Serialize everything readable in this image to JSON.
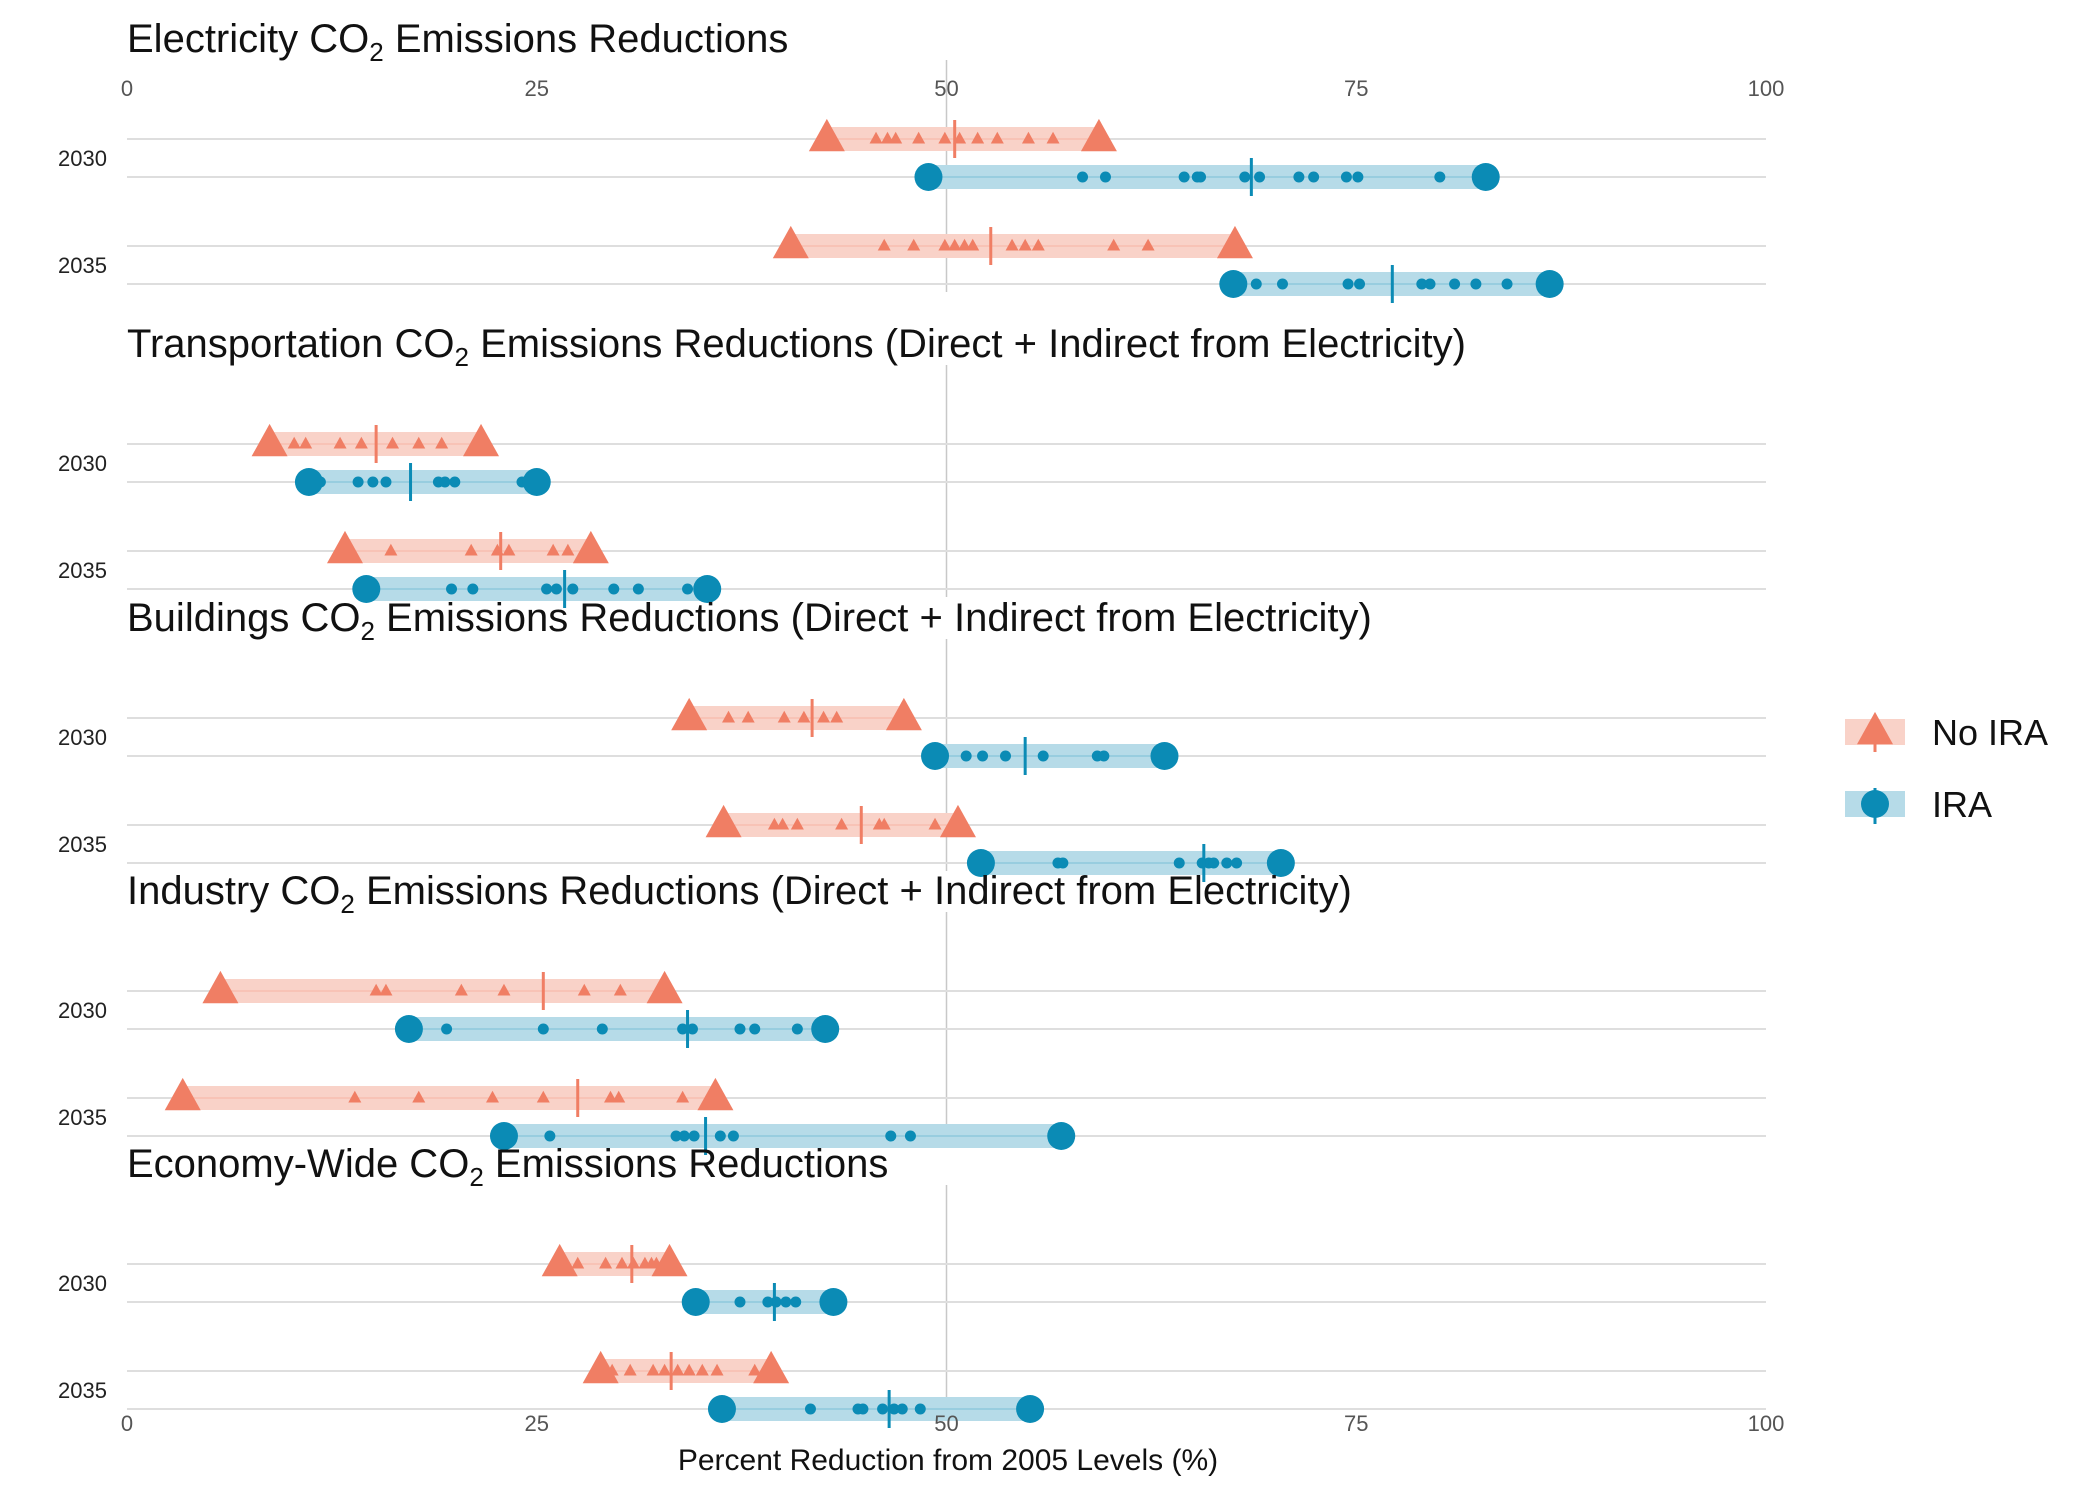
{
  "chart_data": {
    "type": "dot-range",
    "xlabel": "Percent Reduction from 2005 Levels (%)",
    "xlim": [
      0,
      100
    ],
    "xticks": [
      0,
      25,
      50,
      75,
      100
    ],
    "reference_line": 50,
    "legend": {
      "placement": "right",
      "entries": [
        {
          "name": "No IRA",
          "marker": "triangle",
          "color": "#f07e64",
          "band_color": "#f9d2c8"
        },
        {
          "name": "IRA",
          "marker": "circle",
          "color": "#0b8bb5",
          "band_color": "#b6dbe8"
        }
      ]
    },
    "panels": [
      {
        "title_main": "Electricity CO",
        "title_sub": "2",
        "title_rest": " Emissions Reductions",
        "groups": [
          {
            "year": "2030",
            "no_ira": {
              "min": 42.7,
              "max": 59.3,
              "median": 50.5,
              "points": [
                45.7,
                46.4,
                46.9,
                48.3,
                49.9,
                50.8,
                51.9,
                53.1,
                55.0,
                56.5
              ]
            },
            "ira": {
              "min": 48.9,
              "max": 82.9,
              "median": 68.6,
              "points": [
                58.3,
                59.7,
                64.5,
                65.3,
                65.5,
                68.2,
                69.1,
                71.5,
                72.4,
                74.4,
                75.1,
                80.1
              ]
            }
          },
          {
            "year": "2035",
            "no_ira": {
              "min": 40.5,
              "max": 67.6,
              "median": 52.7,
              "points": [
                46.2,
                48.0,
                49.9,
                50.5,
                51.1,
                51.6,
                54.0,
                54.8,
                55.6,
                60.2,
                62.3
              ]
            },
            "ira": {
              "min": 67.5,
              "max": 86.8,
              "median": 77.2,
              "points": [
                68.9,
                70.5,
                74.5,
                75.2,
                79.0,
                79.5,
                81.0,
                82.3,
                84.2
              ]
            }
          }
        ]
      },
      {
        "title_main": "Transportation CO",
        "title_sub": "2",
        "title_rest": " Emissions Reductions (Direct + Indirect from Electricity)",
        "groups": [
          {
            "year": "2030",
            "no_ira": {
              "min": 8.7,
              "max": 21.6,
              "median": 15.2,
              "points": [
                10.2,
                10.9,
                13.0,
                14.3,
                16.2,
                17.8,
                19.2
              ]
            },
            "ira": {
              "min": 11.1,
              "max": 25.0,
              "median": 17.3,
              "points": [
                11.8,
                14.1,
                15.0,
                15.8,
                19.0,
                19.4,
                20.0,
                24.1
              ]
            }
          },
          {
            "year": "2035",
            "no_ira": {
              "min": 13.3,
              "max": 28.3,
              "median": 22.8,
              "points": [
                16.1,
                21.0,
                22.6,
                23.3,
                26.0,
                26.9
              ]
            },
            "ira": {
              "min": 14.6,
              "max": 35.4,
              "median": 26.7,
              "points": [
                19.8,
                21.1,
                25.6,
                26.2,
                27.2,
                29.7,
                31.2,
                34.2
              ]
            }
          }
        ]
      },
      {
        "title_main": "Buildings CO",
        "title_sub": "2",
        "title_rest": " Emissions Reductions (Direct + Indirect from Electricity)",
        "groups": [
          {
            "year": "2030",
            "no_ira": {
              "min": 34.3,
              "max": 47.4,
              "median": 41.8,
              "points": [
                36.7,
                37.9,
                40.1,
                41.3,
                42.5,
                43.3
              ]
            },
            "ira": {
              "min": 49.3,
              "max": 63.3,
              "median": 54.8,
              "points": [
                51.2,
                52.2,
                53.6,
                55.9,
                59.2,
                59.6
              ]
            }
          },
          {
            "year": "2035",
            "no_ira": {
              "min": 36.4,
              "max": 50.7,
              "median": 44.8,
              "points": [
                39.5,
                40.0,
                40.9,
                43.6,
                45.9,
                46.2,
                49.3
              ]
            },
            "ira": {
              "min": 52.1,
              "max": 70.4,
              "median": 65.7,
              "points": [
                56.8,
                57.1,
                64.2,
                65.6,
                66.0,
                66.3,
                67.1,
                67.7
              ]
            }
          }
        ]
      },
      {
        "title_main": "Industry CO",
        "title_sub": "2",
        "title_rest": " Emissions Reductions (Direct + Indirect from Electricity)",
        "groups": [
          {
            "year": "2030",
            "no_ira": {
              "min": 5.7,
              "max": 32.8,
              "median": 25.4,
              "points": [
                15.2,
                15.8,
                20.4,
                23.0,
                27.9,
                30.1
              ]
            },
            "ira": {
              "min": 17.2,
              "max": 42.6,
              "median": 34.2,
              "points": [
                19.5,
                25.4,
                29.0,
                33.9,
                34.5,
                37.4,
                38.3,
                40.9
              ]
            }
          },
          {
            "year": "2035",
            "no_ira": {
              "min": 3.4,
              "max": 35.9,
              "median": 27.5,
              "points": [
                13.9,
                17.8,
                22.3,
                25.4,
                29.5,
                30.0,
                33.9
              ]
            },
            "ira": {
              "min": 23.0,
              "max": 57.0,
              "median": 35.3,
              "points": [
                25.8,
                33.5,
                34.0,
                34.6,
                36.2,
                37.0,
                46.6,
                47.8
              ]
            }
          }
        ]
      },
      {
        "title_main": "Economy-Wide CO",
        "title_sub": "2",
        "title_rest": " Emissions Reductions",
        "groups": [
          {
            "year": "2030",
            "no_ira": {
              "min": 26.4,
              "max": 33.1,
              "median": 30.8,
              "points": [
                27.5,
                29.2,
                30.2,
                30.9,
                31.6,
                32.0,
                32.3
              ]
            },
            "ira": {
              "min": 34.7,
              "max": 43.1,
              "median": 39.5,
              "points": [
                37.4,
                39.1,
                39.6,
                40.2,
                40.8
              ]
            }
          },
          {
            "year": "2035",
            "no_ira": {
              "min": 28.9,
              "max": 39.3,
              "median": 33.2,
              "points": [
                29.6,
                30.7,
                32.1,
                32.8,
                33.6,
                34.3,
                35.1,
                36.0,
                38.3
              ]
            },
            "ira": {
              "min": 36.3,
              "max": 55.1,
              "median": 46.5,
              "points": [
                41.7,
                44.6,
                44.9,
                46.1,
                46.8,
                47.3,
                48.4
              ]
            }
          }
        ]
      }
    ]
  }
}
